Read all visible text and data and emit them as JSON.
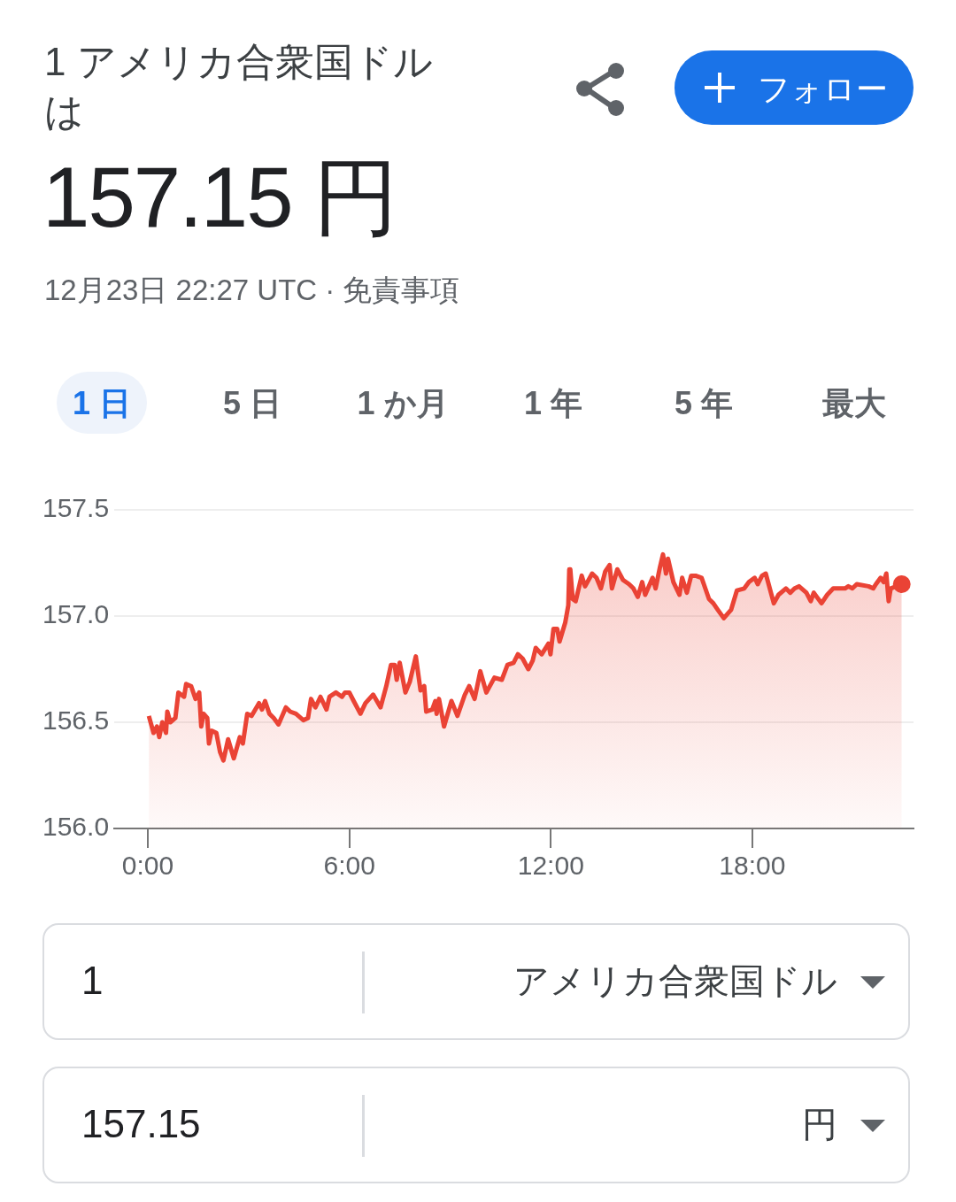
{
  "chart_data": {
    "type": "area",
    "title": "1 アメリカ合衆国ドルは",
    "subtitle": "157.15 円",
    "annotations": [
      "12月23日 22:27 UTC · 免責事項",
      "フォロー",
      "1 日",
      "5 日",
      "1 か月",
      "1 年",
      "5 年",
      "最大",
      "1",
      "アメリカ合衆国ドル",
      "157.15",
      "円"
    ],
    "xlim": [
      -1,
      22.8
    ],
    "xticks": [
      {
        "value": 0,
        "label": "0:00"
      },
      {
        "value": 6,
        "label": "6:00"
      },
      {
        "value": 12,
        "label": "12:00"
      },
      {
        "value": 18,
        "label": "18:00"
      }
    ],
    "ylim": [
      156,
      157.5
    ],
    "yticks": [
      {
        "value": 156,
        "label": "156.0"
      },
      {
        "value": 156.5,
        "label": "156.5"
      },
      {
        "value": 157,
        "label": "157.0"
      },
      {
        "value": 157.5,
        "label": "157.5"
      }
    ],
    "grid": "y",
    "legend": false,
    "series": [
      {
        "color": "#ea4335",
        "x": [
          0.03,
          0.17,
          0.27,
          0.34,
          0.43,
          0.54,
          0.58,
          0.67,
          0.82,
          0.91,
          1.08,
          1.14,
          1.29,
          1.42,
          1.53,
          1.59,
          1.66,
          1.77,
          1.82,
          1.9,
          2.04,
          2.15,
          2.25,
          2.39,
          2.56,
          2.74,
          2.83,
          2.96,
          3.09,
          3.31,
          3.4,
          3.49,
          3.62,
          3.75,
          3.89,
          4.11,
          4.24,
          4.41,
          4.63,
          4.77,
          4.86,
          4.99,
          5.14,
          5.32,
          5.41,
          5.6,
          5.78,
          5.87,
          6,
          6.13,
          6.33,
          6.48,
          6.71,
          6.93,
          7.1,
          7.24,
          7.35,
          7.41,
          7.5,
          7.67,
          7.8,
          7.98,
          8.12,
          8.23,
          8.29,
          8.47,
          8.56,
          8.6,
          8.67,
          8.82,
          9.04,
          9.22,
          9.44,
          9.57,
          9.73,
          9.9,
          10.08,
          10.32,
          10.54,
          10.71,
          10.89,
          11.02,
          11.16,
          11.33,
          11.46,
          11.55,
          11.73,
          11.93,
          11.99,
          12.08,
          12.19,
          12.26,
          12.43,
          12.52,
          12.55,
          12.58,
          12.65,
          12.74,
          12.92,
          13.02,
          13.23,
          13.36,
          13.49,
          13.62,
          13.75,
          13.82,
          13.98,
          14.15,
          14.33,
          14.46,
          14.59,
          14.72,
          14.81,
          15.03,
          15.12,
          15.25,
          15.34,
          15.43,
          15.49,
          15.65,
          15.83,
          15.91,
          16.05,
          16.18,
          16.31,
          16.49,
          16.71,
          16.84,
          16.97,
          17.15,
          17.37,
          17.54,
          17.76,
          17.9,
          18.07,
          18.16,
          18.29,
          18.4,
          18.64,
          18.78,
          19,
          19.13,
          19.26,
          19.39,
          19.61,
          19.74,
          19.83,
          19.92,
          20.06,
          20.23,
          20.41,
          20.58,
          20.76,
          20.86,
          20.98,
          21.11,
          21.46,
          21.6,
          21.68,
          21.82,
          21.91,
          21.99,
          22.06,
          22.12,
          22.45
        ],
        "values": [
          156.53,
          156.45,
          156.48,
          156.43,
          156.5,
          156.45,
          156.55,
          156.5,
          156.52,
          156.64,
          156.62,
          156.68,
          156.67,
          156.61,
          156.64,
          156.48,
          156.54,
          156.52,
          156.4,
          156.46,
          156.45,
          156.36,
          156.32,
          156.42,
          156.33,
          156.43,
          156.4,
          156.54,
          156.53,
          156.59,
          156.56,
          156.6,
          156.54,
          156.52,
          156.49,
          156.57,
          156.55,
          156.54,
          156.51,
          156.52,
          156.61,
          156.57,
          156.62,
          156.56,
          156.62,
          156.64,
          156.62,
          156.64,
          156.64,
          156.6,
          156.54,
          156.59,
          156.63,
          156.57,
          156.67,
          156.77,
          156.77,
          156.7,
          156.78,
          156.64,
          156.69,
          156.81,
          156.65,
          156.67,
          156.55,
          156.56,
          156.6,
          156.54,
          156.61,
          156.48,
          156.6,
          156.53,
          156.63,
          156.67,
          156.61,
          156.74,
          156.64,
          156.71,
          156.7,
          156.77,
          156.78,
          156.82,
          156.8,
          156.75,
          156.79,
          156.85,
          156.82,
          156.87,
          156.82,
          156.94,
          156.94,
          156.88,
          156.97,
          157.05,
          157.22,
          157.22,
          157.08,
          157.07,
          157.19,
          157.14,
          157.2,
          157.18,
          157.13,
          157.21,
          157.24,
          157.13,
          157.22,
          157.17,
          157.15,
          157.13,
          157.09,
          157.16,
          157.1,
          157.18,
          157.13,
          157.23,
          157.29,
          157.2,
          157.27,
          157.16,
          157.1,
          157.18,
          157.11,
          157.19,
          157.19,
          157.18,
          157.08,
          157.06,
          157.03,
          156.99,
          157.03,
          157.12,
          157.13,
          157.16,
          157.18,
          157.15,
          157.19,
          157.2,
          157.06,
          157.1,
          157.13,
          157.11,
          157.13,
          157.14,
          157.11,
          157.07,
          157.11,
          157.09,
          157.06,
          157.1,
          157.13,
          157.13,
          157.13,
          157.14,
          157.13,
          157.15,
          157.14,
          157.13,
          157.15,
          157.18,
          157.16,
          157.2,
          157.07,
          157.13,
          157.15
        ]
      }
    ]
  }
}
